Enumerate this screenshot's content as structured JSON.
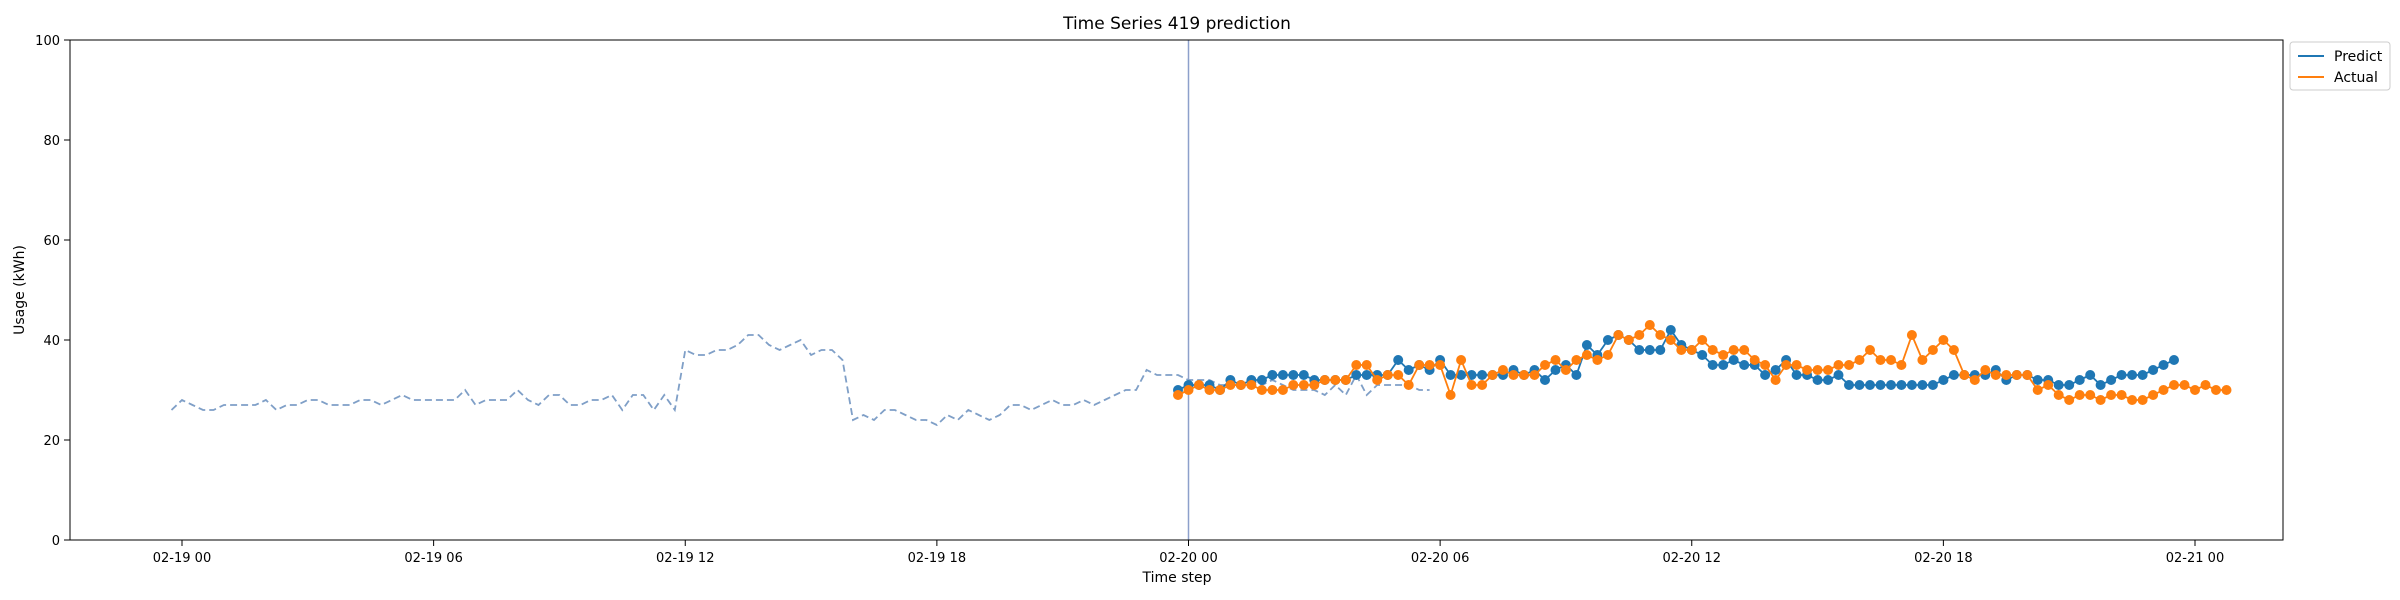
{
  "chart_data": {
    "type": "line",
    "title": "Time Series 419 prediction",
    "xlabel": "Time step",
    "ylabel": "Usage (kWh)",
    "ylim": [
      0,
      100
    ],
    "yticks": [
      0,
      20,
      40,
      60,
      80,
      100
    ],
    "xticks": [
      "02-19 00",
      "02-19 06",
      "02-19 12",
      "02-19 18",
      "02-20 00",
      "02-20 06",
      "02-20 12",
      "02-20 18",
      "02-21 00"
    ],
    "x_start": "02-19 00",
    "x_step_minutes": 15,
    "grid": false,
    "legend_position": "outside-top-right",
    "forecast_start": "02-20 00",
    "colors": {
      "history": "#7f9fc7",
      "predict": "#1f77b4",
      "actual": "#ff7f0e",
      "divider": "#8da0cb"
    },
    "history": {
      "start": "02-18 23:45",
      "values": [
        26,
        28,
        27,
        26,
        26,
        27,
        27,
        27,
        27,
        28,
        26,
        27,
        27,
        28,
        28,
        27,
        27,
        27,
        28,
        28,
        27,
        28,
        29,
        28,
        28,
        28,
        28,
        28,
        30,
        27,
        28,
        28,
        28,
        30,
        28,
        27,
        29,
        29,
        27,
        27,
        28,
        28,
        29,
        26,
        29,
        29,
        26,
        29,
        26,
        38,
        37,
        37,
        38,
        38,
        39,
        41,
        41,
        39,
        38,
        39,
        40,
        37,
        38,
        38,
        36,
        24,
        25,
        24,
        26,
        26,
        25,
        24,
        24,
        23,
        25,
        24,
        26,
        25,
        24,
        25,
        27,
        27,
        26,
        27,
        28,
        27,
        27,
        28,
        27,
        28,
        29,
        30,
        30,
        34,
        33,
        33,
        33,
        32,
        32,
        32,
        31,
        31,
        31,
        32,
        31,
        32,
        31,
        30,
        30,
        30,
        29,
        31,
        29,
        33,
        29,
        31,
        31,
        31,
        31,
        30,
        30
      ]
    },
    "series": [
      {
        "name": "Predict",
        "start": "02-19 23:45",
        "values": [
          30,
          31,
          31,
          31,
          30,
          32,
          31,
          32,
          32,
          33,
          33,
          33,
          33,
          32,
          32,
          32,
          32,
          33,
          33,
          33,
          33,
          36,
          34,
          35,
          34,
          36,
          33,
          33,
          33,
          33,
          33,
          33,
          34,
          33,
          34,
          32,
          34,
          35,
          33,
          39,
          37,
          40,
          41,
          40,
          38,
          38,
          38,
          42,
          39,
          38,
          37,
          35,
          35,
          36,
          35,
          35,
          33,
          34,
          36,
          33,
          33,
          32,
          32,
          33,
          31,
          31,
          31,
          31,
          31,
          31,
          31,
          31,
          31,
          32,
          33,
          33,
          33,
          33,
          34,
          32,
          33,
          33,
          32,
          32,
          31,
          31,
          32,
          33,
          31,
          32,
          33,
          33,
          33,
          34,
          35,
          36
        ]
      },
      {
        "name": "Actual",
        "start": "02-19 23:45",
        "values": [
          29,
          30,
          31,
          30,
          30,
          31,
          31,
          31,
          30,
          30,
          30,
          31,
          31,
          31,
          32,
          32,
          32,
          35,
          35,
          32,
          33,
          33,
          31,
          35,
          35,
          35,
          29,
          36,
          31,
          31,
          33,
          34,
          33,
          33,
          33,
          35,
          36,
          34,
          36,
          37,
          36,
          37,
          41,
          40,
          41,
          43,
          41,
          40,
          38,
          38,
          40,
          38,
          37,
          38,
          38,
          36,
          35,
          32,
          35,
          35,
          34,
          34,
          34,
          35,
          35,
          36,
          38,
          36,
          36,
          35,
          41,
          36,
          38,
          40,
          38,
          33,
          32,
          34,
          33,
          33,
          33,
          33,
          30,
          31,
          29,
          28,
          29,
          29,
          28,
          29,
          29,
          28,
          28,
          29,
          30,
          31,
          31,
          30,
          31,
          30,
          30
        ]
      }
    ]
  }
}
